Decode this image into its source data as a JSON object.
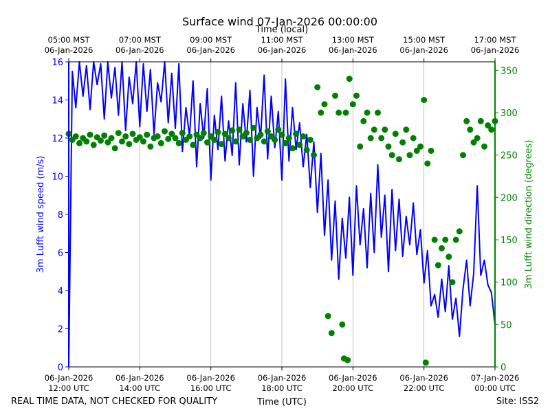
{
  "chart_data": {
    "type": "line+scatter",
    "title": "Surface wind 07-Jan-2026 00:00:00",
    "top_axis_label": "Time (local)",
    "xlabel": "Time (UTC)",
    "footer_left": "REAL TIME DATA, NOT CHECKED FOR QUALITY",
    "footer_right": "Site: ISS2",
    "x_hours_range": [
      12,
      24
    ],
    "bottom_ticks": [
      {
        "hour": 12,
        "line1": "06-Jan-2026",
        "line2": "12:00 UTC"
      },
      {
        "hour": 14,
        "line1": "06-Jan-2026",
        "line2": "14:00 UTC"
      },
      {
        "hour": 16,
        "line1": "06-Jan-2026",
        "line2": "16:00 UTC"
      },
      {
        "hour": 18,
        "line1": "06-Jan-2026",
        "line2": "18:00 UTC"
      },
      {
        "hour": 20,
        "line1": "06-Jan-2026",
        "line2": "20:00 UTC"
      },
      {
        "hour": 22,
        "line1": "06-Jan-2026",
        "line2": "22:00 UTC"
      },
      {
        "hour": 24,
        "line1": "07-Jan-2026",
        "line2": "00:00 UTC"
      }
    ],
    "top_ticks": [
      {
        "hour": 12,
        "line1": "05:00 MST",
        "line2": "06-Jan-2026"
      },
      {
        "hour": 14,
        "line1": "07:00 MST",
        "line2": "06-Jan-2026"
      },
      {
        "hour": 16,
        "line1": "09:00 MST",
        "line2": "06-Jan-2026"
      },
      {
        "hour": 18,
        "line1": "11:00 MST",
        "line2": "06-Jan-2026"
      },
      {
        "hour": 20,
        "line1": "13:00 MST",
        "line2": "06-Jan-2026"
      },
      {
        "hour": 22,
        "line1": "15:00 MST",
        "line2": "06-Jan-2026"
      },
      {
        "hour": 24,
        "line1": "17:00 MST",
        "line2": "06-Jan-2026"
      }
    ],
    "left_axis": {
      "label": "3m Lufft wind speed (m/s)",
      "ylim": [
        0,
        16
      ],
      "ticks": [
        0,
        2,
        4,
        6,
        8,
        10,
        12,
        14,
        16
      ],
      "color": "#0000ff"
    },
    "right_axis": {
      "label": "3m Lufft wind direction (degrees)",
      "ylim": [
        0,
        360
      ],
      "ticks": [
        0,
        50,
        100,
        150,
        200,
        250,
        300,
        350
      ],
      "color": "#008000"
    },
    "grid_vertical_hours": [
      14,
      16,
      18,
      20,
      22
    ],
    "series": [
      {
        "name": "3m Lufft wind speed",
        "axis": "left",
        "style": "line",
        "color": "#0000ff",
        "x_hours": [
          12.0,
          12.1,
          12.2,
          12.3,
          12.4,
          12.5,
          12.6,
          12.7,
          12.8,
          12.9,
          13.0,
          13.1,
          13.2,
          13.3,
          13.4,
          13.5,
          13.6,
          13.7,
          13.8,
          13.9,
          14.0,
          14.1,
          14.2,
          14.3,
          14.4,
          14.5,
          14.6,
          14.7,
          14.8,
          14.9,
          15.0,
          15.1,
          15.2,
          15.3,
          15.4,
          15.5,
          15.6,
          15.7,
          15.8,
          15.9,
          16.0,
          16.1,
          16.2,
          16.3,
          16.4,
          16.5,
          16.6,
          16.7,
          16.8,
          16.9,
          17.0,
          17.1,
          17.2,
          17.3,
          17.4,
          17.5,
          17.6,
          17.7,
          17.8,
          17.9,
          18.0,
          18.1,
          18.2,
          18.3,
          18.4,
          18.5,
          18.6,
          18.7,
          18.8,
          18.9,
          19.0,
          19.1,
          19.2,
          19.3,
          19.4,
          19.5,
          19.6,
          19.7,
          19.8,
          19.9,
          20.0,
          20.1,
          20.2,
          20.3,
          20.4,
          20.5,
          20.6,
          20.7,
          20.8,
          20.9,
          21.0,
          21.1,
          21.2,
          21.3,
          21.4,
          21.5,
          21.6,
          21.7,
          21.8,
          21.9,
          22.0,
          22.1,
          22.2,
          22.3,
          22.4,
          22.5,
          22.6,
          22.7,
          22.8,
          22.9,
          23.0,
          23.1,
          23.2,
          23.3,
          23.4,
          23.5,
          23.6,
          23.7,
          23.8,
          23.9,
          24.0
        ],
        "values": [
          0.0,
          15.5,
          13.6,
          16.0,
          14.2,
          15.8,
          13.5,
          16.0,
          14.8,
          15.9,
          13.0,
          16.0,
          14.1,
          15.7,
          13.2,
          16.0,
          12.4,
          15.2,
          13.8,
          16.0,
          12.6,
          15.9,
          13.4,
          15.6,
          12.2,
          14.9,
          13.9,
          16.0,
          12.8,
          15.4,
          12.5,
          15.9,
          11.3,
          13.6,
          12.1,
          15.0,
          10.5,
          13.8,
          12.0,
          14.6,
          9.8,
          13.2,
          11.4,
          14.2,
          10.8,
          12.9,
          11.1,
          14.9,
          10.6,
          13.8,
          11.8,
          14.5,
          10.0,
          13.6,
          12.0,
          15.3,
          10.9,
          14.2,
          11.5,
          13.4,
          9.8,
          15.1,
          10.8,
          13.6,
          11.4,
          12.8,
          10.5,
          12.2,
          9.4,
          11.8,
          8.1,
          11.2,
          6.9,
          9.8,
          5.6,
          8.7,
          4.6,
          7.8,
          5.7,
          8.9,
          4.8,
          9.5,
          6.4,
          8.3,
          5.2,
          9.1,
          6.0,
          10.6,
          6.8,
          9.0,
          5.0,
          9.3,
          6.1,
          8.8,
          5.8,
          7.9,
          6.4,
          8.6,
          5.9,
          7.2,
          4.4,
          6.1,
          3.2,
          3.8,
          2.6,
          4.6,
          2.9,
          5.3,
          2.5,
          3.6,
          1.6,
          4.1,
          5.6,
          3.2,
          4.9,
          9.5,
          4.8,
          5.6,
          4.3,
          3.9,
          2.2
        ]
      },
      {
        "name": "3m Lufft wind direction",
        "axis": "right",
        "style": "markers",
        "color": "#008000",
        "x_hours": [
          12.0,
          12.1,
          12.2,
          12.3,
          12.4,
          12.5,
          12.6,
          12.7,
          12.8,
          12.9,
          13.0,
          13.1,
          13.2,
          13.3,
          13.4,
          13.5,
          13.6,
          13.7,
          13.8,
          13.9,
          14.0,
          14.1,
          14.2,
          14.3,
          14.4,
          14.5,
          14.6,
          14.7,
          14.8,
          14.9,
          15.0,
          15.1,
          15.2,
          15.3,
          15.4,
          15.5,
          15.6,
          15.7,
          15.8,
          15.9,
          16.0,
          16.1,
          16.2,
          16.3,
          16.4,
          16.5,
          16.6,
          16.7,
          16.8,
          16.9,
          17.0,
          17.1,
          17.2,
          17.3,
          17.4,
          17.5,
          17.6,
          17.7,
          17.8,
          17.9,
          18.0,
          18.1,
          18.2,
          18.3,
          18.4,
          18.5,
          18.6,
          18.7,
          18.8,
          18.9,
          19.0,
          19.1,
          19.2,
          19.3,
          19.4,
          19.5,
          19.6,
          19.7,
          19.75,
          19.8,
          19.85,
          19.9,
          20.0,
          20.1,
          20.2,
          20.3,
          20.4,
          20.5,
          20.6,
          20.7,
          20.8,
          20.9,
          21.0,
          21.1,
          21.2,
          21.3,
          21.4,
          21.5,
          21.6,
          21.7,
          21.8,
          21.9,
          22.0,
          22.05,
          22.1,
          22.2,
          22.3,
          22.4,
          22.5,
          22.6,
          22.7,
          22.8,
          22.9,
          23.0,
          23.1,
          23.2,
          23.3,
          23.4,
          23.5,
          23.6,
          23.7,
          23.8,
          23.9,
          24.0
        ],
        "values": [
          275,
          268,
          272,
          264,
          270,
          266,
          274,
          262,
          271,
          267,
          273,
          265,
          270,
          258,
          276,
          266,
          272,
          263,
          275,
          268,
          271,
          266,
          274,
          260,
          270,
          272,
          264,
          278,
          269,
          275,
          270,
          264,
          276,
          268,
          272,
          262,
          274,
          270,
          276,
          265,
          272,
          268,
          277,
          263,
          275,
          270,
          279,
          266,
          280,
          272,
          276,
          268,
          282,
          270,
          274,
          266,
          278,
          272,
          268,
          280,
          274,
          264,
          270,
          258,
          275,
          262,
          272,
          256,
          268,
          250,
          330,
          300,
          310,
          60,
          40,
          320,
          300,
          50,
          10,
          300,
          8,
          340,
          310,
          320,
          260,
          290,
          300,
          270,
          280,
          300,
          270,
          280,
          260,
          250,
          275,
          245,
          265,
          280,
          250,
          270,
          255,
          260,
          315,
          5,
          240,
          255,
          150,
          120,
          140,
          150,
          130,
          100,
          150,
          160,
          250,
          290,
          280,
          265,
          270,
          290,
          260,
          285,
          280,
          290
        ]
      }
    ]
  }
}
